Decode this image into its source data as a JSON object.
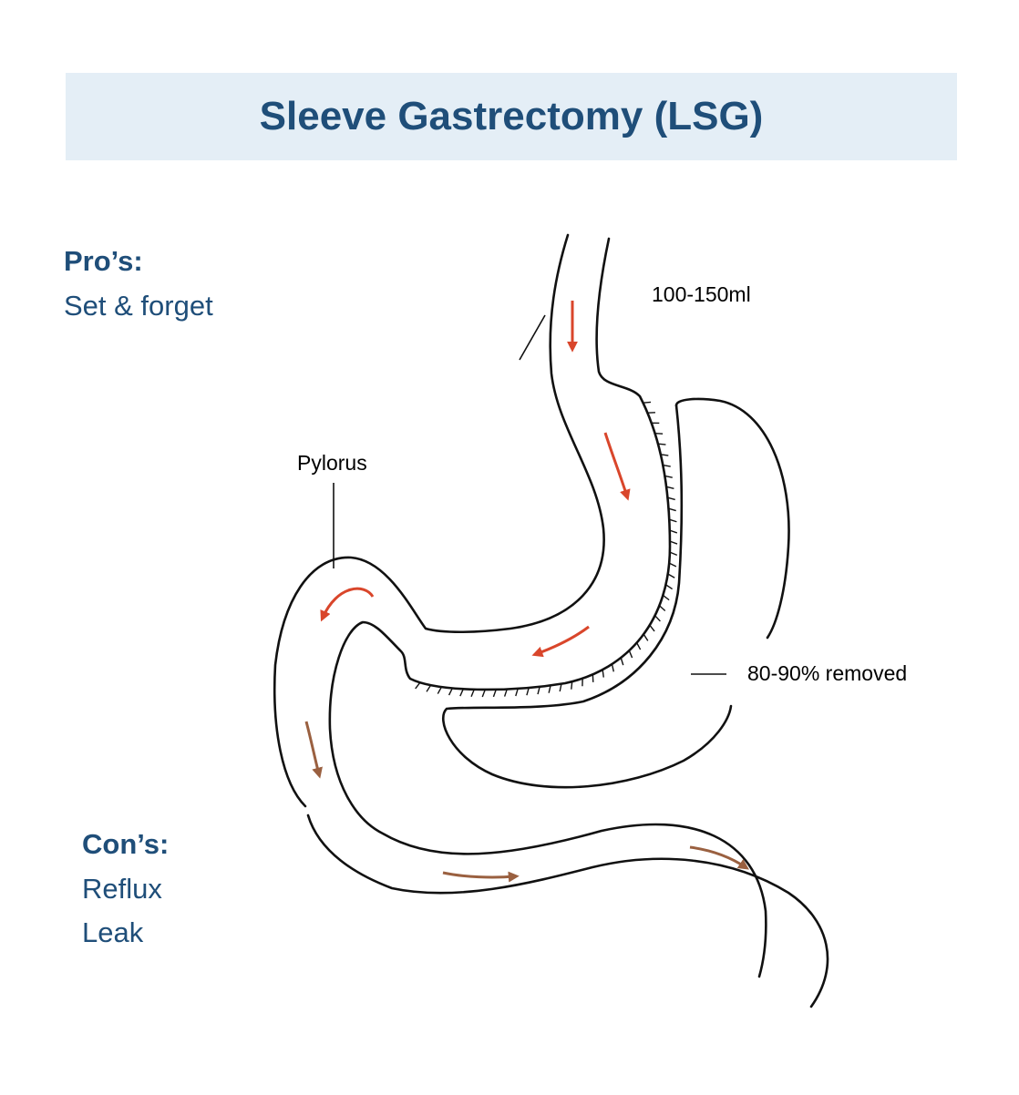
{
  "header": {
    "title": "Sleeve Gastrectomy (LSG)"
  },
  "pros": {
    "heading": "Pro’s:",
    "items": [
      "Set & forget"
    ]
  },
  "cons": {
    "heading": "Con’s:",
    "items": [
      "Reflux",
      "Leak"
    ]
  },
  "labels": {
    "volume": "100-150ml",
    "pylorus": "Pylorus",
    "removed": "80-90% removed"
  }
}
